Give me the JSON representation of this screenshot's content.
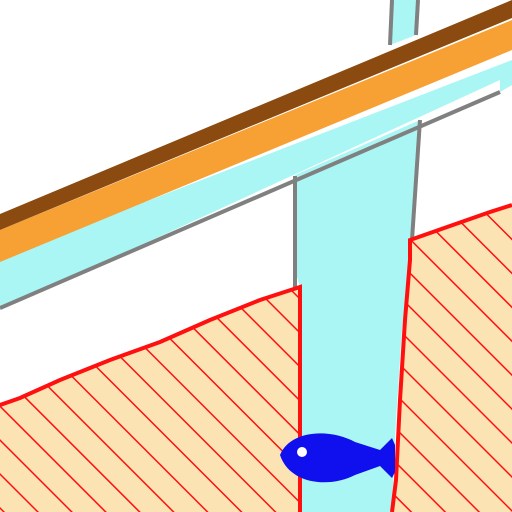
{
  "scene": {
    "background": "#ffffff",
    "colors": {
      "water": "#aaf6f4",
      "pipe_outline": "#808080",
      "rail_dark": "#8b4a10",
      "rail_light": "#f7a033",
      "sand_fill": "#fbe3b4",
      "sand_hatch": "#ff1010",
      "fish": "#1010ee",
      "fish_eye": "#ffffff"
    },
    "icons": [
      "water-channel",
      "wooden-rail",
      "sand-bank-left",
      "sand-bank-right",
      "fish-icon"
    ]
  }
}
